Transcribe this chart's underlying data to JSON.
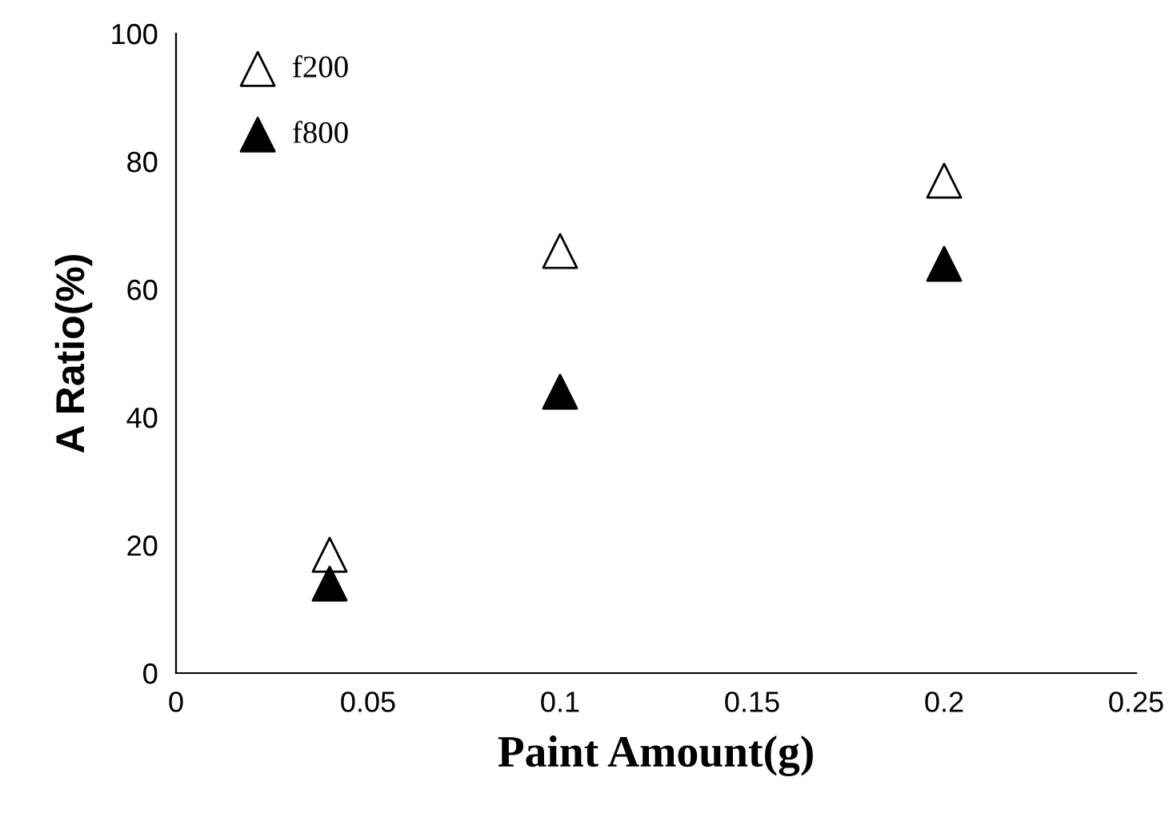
{
  "chart_data": {
    "type": "scatter",
    "xlabel": "Paint Amount(g)",
    "ylabel": "A Ratio(%)",
    "x": [
      0.04,
      0.1,
      0.2
    ],
    "series": [
      {
        "name": "f200",
        "color": "#ffffff",
        "values": [
          18.5,
          66,
          77
        ]
      },
      {
        "name": "f800",
        "color": "#000000",
        "values": [
          14,
          44,
          64
        ]
      }
    ],
    "xlim": [
      0,
      0.25
    ],
    "xticks": [
      0,
      0.05,
      0.1,
      0.15,
      0.2,
      0.25
    ],
    "ylim": [
      0,
      100
    ],
    "yticks": [
      0,
      20,
      40,
      60,
      80,
      100
    ],
    "grid": false,
    "legend": "top left",
    "marker": "triangle"
  }
}
